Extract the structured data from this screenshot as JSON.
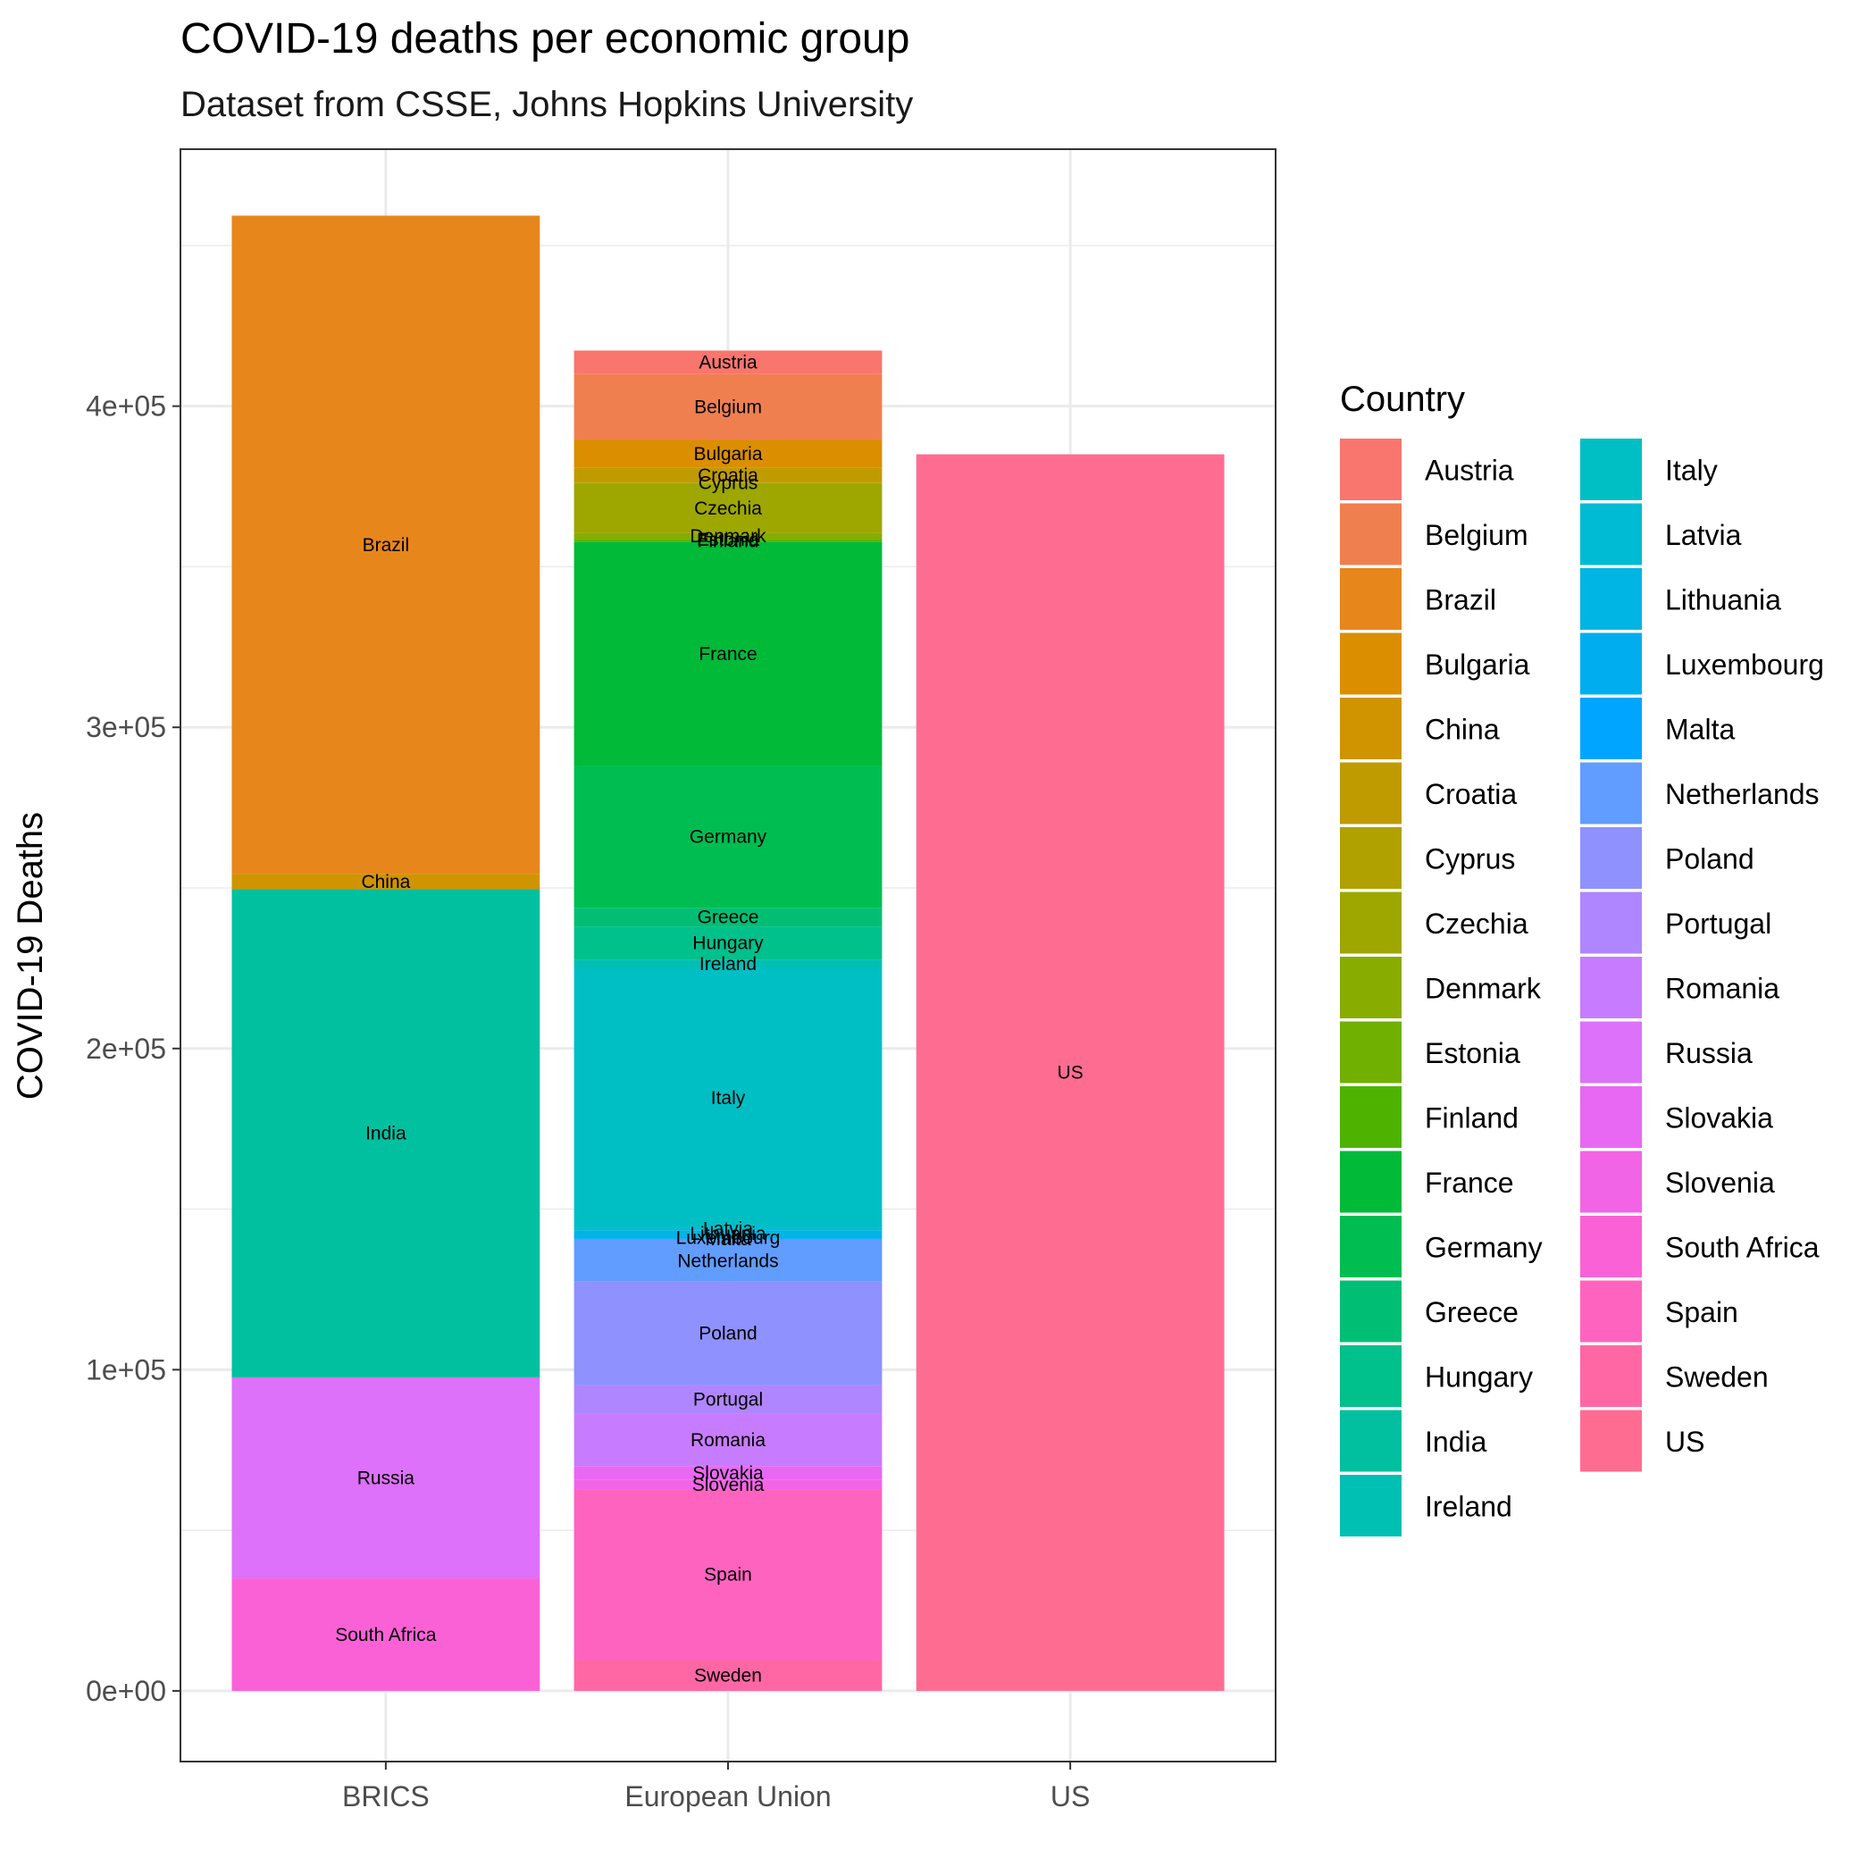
{
  "chart_data": {
    "type": "bar",
    "stacked": true,
    "title": "COVID-19 deaths per economic group",
    "subtitle": "Dataset from CSSE, Johns Hopkins University",
    "xlabel": "",
    "ylabel": "COVID-19 Deaths",
    "ylim": [
      -22000,
      480000
    ],
    "y_ticks": [
      0,
      100000,
      200000,
      300000,
      400000
    ],
    "y_tick_labels": [
      "0e+00",
      "1e+05",
      "2e+05",
      "3e+05",
      "4e+05"
    ],
    "grid": true,
    "legend_title": "Country",
    "legend_position": "right",
    "categories": [
      "BRICS",
      "European Union",
      "US"
    ],
    "series": [
      {
        "name": "Austria",
        "color": "#F8766D",
        "values": [
          0,
          7300,
          0
        ]
      },
      {
        "name": "Belgium",
        "color": "#F07F50",
        "values": [
          0,
          20400,
          0
        ]
      },
      {
        "name": "Brazil",
        "color": "#E7861B",
        "values": [
          204900,
          0,
          0
        ]
      },
      {
        "name": "Bulgaria",
        "color": "#DB8E00",
        "values": [
          0,
          8800,
          0
        ]
      },
      {
        "name": "China",
        "color": "#CF9400",
        "values": [
          4800,
          0,
          0
        ]
      },
      {
        "name": "Croatia",
        "color": "#C09B00",
        "values": [
          0,
          4600,
          0
        ]
      },
      {
        "name": "Cyprus",
        "color": "#B0A100",
        "values": [
          0,
          200,
          0
        ]
      },
      {
        "name": "Czechia",
        "color": "#9DA700",
        "values": [
          0,
          15500,
          0
        ]
      },
      {
        "name": "Denmark",
        "color": "#88AC00",
        "values": [
          0,
          1900,
          0
        ]
      },
      {
        "name": "Estonia",
        "color": "#6FB000",
        "values": [
          0,
          300,
          0
        ]
      },
      {
        "name": "Finland",
        "color": "#4DB300",
        "values": [
          0,
          600,
          0
        ]
      },
      {
        "name": "France",
        "color": "#00BA38",
        "values": [
          0,
          69600,
          0
        ]
      },
      {
        "name": "Germany",
        "color": "#00BD52",
        "values": [
          0,
          44300,
          0
        ]
      },
      {
        "name": "Greece",
        "color": "#00BF74",
        "values": [
          0,
          5800,
          0
        ]
      },
      {
        "name": "Hungary",
        "color": "#00C08B",
        "values": [
          0,
          10300,
          0
        ]
      },
      {
        "name": "India",
        "color": "#00C0A0",
        "values": [
          152000,
          0,
          0
        ]
      },
      {
        "name": "Ireland",
        "color": "#00BFB3",
        "values": [
          0,
          2600,
          0
        ]
      },
      {
        "name": "Italy",
        "color": "#00BFC4",
        "values": [
          0,
          80800,
          0
        ]
      },
      {
        "name": "Latvia",
        "color": "#00BBD4",
        "values": [
          0,
          900,
          0
        ]
      },
      {
        "name": "Lithuania",
        "color": "#00B5E3",
        "values": [
          0,
          2000,
          0
        ]
      },
      {
        "name": "Luxembourg",
        "color": "#00AEF0",
        "values": [
          0,
          600,
          0
        ]
      },
      {
        "name": "Malta",
        "color": "#00A5FF",
        "values": [
          0,
          300,
          0
        ]
      },
      {
        "name": "Netherlands",
        "color": "#619CFF",
        "values": [
          0,
          13100,
          0
        ]
      },
      {
        "name": "Poland",
        "color": "#8F91FF",
        "values": [
          0,
          32200,
          0
        ]
      },
      {
        "name": "Portugal",
        "color": "#AF86FF",
        "values": [
          0,
          8900,
          0
        ]
      },
      {
        "name": "Romania",
        "color": "#C77CFF",
        "values": [
          0,
          16300,
          0
        ]
      },
      {
        "name": "Russia",
        "color": "#DD71FA",
        "values": [
          62600,
          0,
          0
        ]
      },
      {
        "name": "Slovakia",
        "color": "#E968F3",
        "values": [
          0,
          4300,
          0
        ]
      },
      {
        "name": "Slovenia",
        "color": "#F264E6",
        "values": [
          0,
          3000,
          0
        ]
      },
      {
        "name": "South Africa",
        "color": "#FB61D7",
        "values": [
          35000,
          0,
          0
        ]
      },
      {
        "name": "Spain",
        "color": "#FF63C0",
        "values": [
          0,
          53000,
          0
        ]
      },
      {
        "name": "Sweden",
        "color": "#FF67A4",
        "values": [
          0,
          9700,
          0
        ]
      },
      {
        "name": "US",
        "color": "#FF6C91",
        "values": [
          0,
          0,
          385000
        ]
      }
    ]
  }
}
